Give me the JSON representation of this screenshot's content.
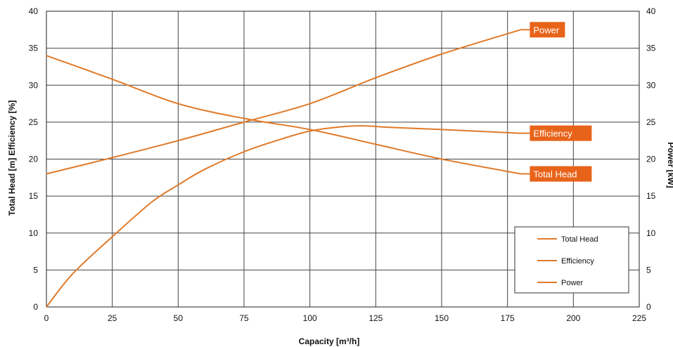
{
  "chart_data": {
    "type": "line",
    "xlabel": "Capacity [m³/h]",
    "ylabel_left": "Total Head [m] Efficiency [%]",
    "ylabel_right": "Power [kW]",
    "xlim": [
      0,
      225
    ],
    "ylim_left": [
      0,
      40
    ],
    "ylim_right": [
      0,
      40
    ],
    "x_ticks": [
      "0",
      "25",
      "50",
      "75",
      "100",
      "125",
      "150",
      "175",
      "200",
      "225"
    ],
    "y_ticks_left": [
      "0",
      "5",
      "10",
      "15",
      "20",
      "25",
      "30",
      "35",
      "40"
    ],
    "y_ticks_right": [
      "0",
      "5",
      "10",
      "15",
      "20",
      "25",
      "30",
      "35",
      "40"
    ],
    "grid": true,
    "legend_placement": "bottom-right",
    "line_color": "#E07A2A",
    "tag_color": "#E8631A",
    "series": [
      {
        "name": "Total Head",
        "axis": "left",
        "x": [
          0,
          25,
          50,
          75,
          100,
          125,
          150,
          180
        ],
        "values": [
          34,
          30.8,
          27.5,
          25.5,
          24,
          22,
          20,
          18
        ]
      },
      {
        "name": "Efficiency",
        "axis": "left",
        "x": [
          0,
          10,
          25,
          40,
          50,
          60,
          75,
          90,
          100,
          110,
          120,
          130,
          150,
          180
        ],
        "values": [
          0,
          4.5,
          9.5,
          14.2,
          16.5,
          18.6,
          21,
          22.8,
          23.8,
          24.3,
          24.5,
          24.3,
          24,
          23.5
        ]
      },
      {
        "name": "Power",
        "axis": "right",
        "x": [
          0,
          25,
          50,
          75,
          100,
          125,
          150,
          180
        ],
        "values": [
          18,
          20.2,
          22.5,
          25,
          27.5,
          31,
          34.2,
          37.5
        ]
      }
    ],
    "end_labels": [
      "Power",
      "Efficiency",
      "Total Head"
    ],
    "legend": [
      "Total Head",
      "Efficiency",
      "Power"
    ]
  }
}
